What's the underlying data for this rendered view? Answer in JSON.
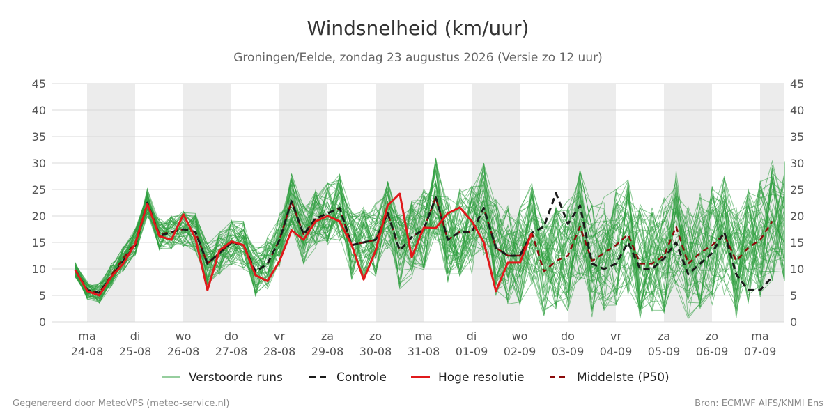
{
  "header": {
    "title": "Windsnelheid (km/uur)",
    "subtitle": "Groningen/Eelde, zondag 23 augustus 2026 (Versie zo 12 uur)"
  },
  "footer": {
    "left": "Gegenereerd door MeteoVPS (meteo-service.nl)",
    "right": "Bron: ECMWF AIFS/KNMI Ens"
  },
  "colors": {
    "ensemble": "#2e9e3e",
    "control": "#1a1a1a",
    "high_res": "#e0191b",
    "median": "#8b0a0a",
    "band": "#ececec",
    "grid": "#d9d9d9"
  },
  "chart_data": {
    "type": "line",
    "title": "Windsnelheid (km/uur)",
    "ylim": [
      0,
      45
    ],
    "yticks": [
      0,
      5,
      10,
      15,
      20,
      25,
      30,
      35,
      40,
      45
    ],
    "ytick_labels": [
      "0",
      "5",
      "10",
      "15",
      "20",
      "25",
      "30",
      "35",
      "40",
      "45"
    ],
    "grid": true,
    "legend_position": "bottom",
    "x_day_ticks": [
      {
        "day": "ma",
        "date": "24-08"
      },
      {
        "day": "di",
        "date": "25-08"
      },
      {
        "day": "wo",
        "date": "26-08"
      },
      {
        "day": "do",
        "date": "27-08"
      },
      {
        "day": "vr",
        "date": "28-08"
      },
      {
        "day": "za",
        "date": "29-08"
      },
      {
        "day": "zo",
        "date": "30-08"
      },
      {
        "day": "ma",
        "date": "31-08"
      },
      {
        "day": "di",
        "date": "01-09"
      },
      {
        "day": "wo",
        "date": "02-09"
      },
      {
        "day": "do",
        "date": "03-09"
      },
      {
        "day": "vr",
        "date": "04-09"
      },
      {
        "day": "za",
        "date": "05-09"
      },
      {
        "day": "zo",
        "date": "06-09"
      },
      {
        "day": "ma",
        "date": "07-09"
      }
    ],
    "legend": [
      {
        "key": "ensemble",
        "label": "Verstoorde runs"
      },
      {
        "key": "control",
        "label": "Controle"
      },
      {
        "key": "high_res",
        "label": "Hoge resolutie"
      },
      {
        "key": "median",
        "label": "Middelste (P50)"
      }
    ],
    "series": [
      {
        "key": "high_res",
        "name": "Hoge resolutie",
        "values": [
          9.8,
          5.8,
          5.0,
          8.5,
          11.0,
          14.8,
          22.3,
          16.2,
          15.5,
          20.3,
          15.8,
          6.0,
          13.5,
          15.2,
          14.5,
          8.8,
          7.7,
          11.5,
          17.3,
          15.5,
          19.0,
          20.0,
          19.0,
          14.5,
          8.0,
          13.5,
          22.0,
          24.2,
          12.2,
          17.8,
          17.7,
          20.5,
          21.6,
          19.0,
          15.0,
          5.8,
          11.2,
          11.2,
          16.8
        ]
      },
      {
        "key": "control",
        "name": "Controle",
        "values": [
          9.8,
          6.0,
          5.5,
          8.5,
          11.5,
          14.5,
          22.5,
          16.2,
          17.0,
          17.5,
          17.0,
          11.0,
          13.0,
          15.0,
          14.5,
          9.5,
          11.0,
          15.5,
          22.8,
          16.5,
          19.5,
          20.5,
          21.5,
          14.5,
          15.0,
          15.5,
          20.5,
          13.5,
          16.0,
          17.5,
          23.5,
          15.5,
          17.0,
          17.0,
          21.5,
          14.0,
          12.5,
          12.5,
          16.8,
          18.0,
          24.3,
          18.5,
          22.0,
          11.0,
          10.0,
          11.0,
          15.0,
          10.0,
          10.0,
          12.0,
          15.0,
          9.0,
          11.0,
          13.0,
          17.0,
          9.0,
          6.0,
          6.0,
          8.5
        ]
      },
      {
        "key": "median",
        "name": "Middelste (P50)",
        "values": [
          9.8,
          6.0,
          5.5,
          8.8,
          12.0,
          15.0,
          22.5,
          16.5,
          17.0,
          17.5,
          17.0,
          11.0,
          13.0,
          15.0,
          14.5,
          9.5,
          11.0,
          15.5,
          22.8,
          16.5,
          19.5,
          20.5,
          21.5,
          14.5,
          15.0,
          15.5,
          20.5,
          13.5,
          16.0,
          17.5,
          23.5,
          15.5,
          17.0,
          17.0,
          21.5,
          14.0,
          12.5,
          12.5,
          16.8,
          9.5,
          11.5,
          12.5,
          18.0,
          11.5,
          13.0,
          14.5,
          16.5,
          11.0,
          11.0,
          12.5,
          18.0,
          11.0,
          13.0,
          14.5,
          16.5,
          11.5,
          14.0,
          15.5,
          19.0
        ]
      }
    ]
  }
}
